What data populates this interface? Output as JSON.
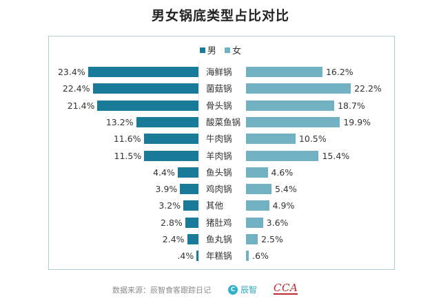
{
  "title": "男女锅底类型占比对比",
  "legend": {
    "male": {
      "label": "男",
      "color": "#1a7b98"
    },
    "female": {
      "label": "女",
      "color": "#72b1c1"
    }
  },
  "footer": {
    "source": "数据来源：辰智食客跟踪日记",
    "logo_chenzhi": {
      "glyph": "C",
      "text": "辰智"
    },
    "logo_cca": "CCA"
  },
  "rows": [
    {
      "category": "海鲜锅",
      "male": "23.4%",
      "female": "16.2%"
    },
    {
      "category": "菌菇锅",
      "male": "22.4%",
      "female": "22.2%"
    },
    {
      "category": "骨头锅",
      "male": "21.4%",
      "female": "18.7%"
    },
    {
      "category": "酸菜鱼锅",
      "male": "13.2%",
      "female": "19.9%"
    },
    {
      "category": "牛肉锅",
      "male": "11.6%",
      "female": "10.5%"
    },
    {
      "category": "羊肉锅",
      "male": "11.5%",
      "female": "15.4%"
    },
    {
      "category": "鱼头锅",
      "male": "4.4%",
      "female": "4.6%"
    },
    {
      "category": "鸡肉锅",
      "male": "3.9%",
      "female": "5.4%"
    },
    {
      "category": "其他",
      "male": "3.2%",
      "female": "4.9%"
    },
    {
      "category": "猪肚鸡",
      "male": "2.8%",
      "female": "3.6%"
    },
    {
      "category": "鱼丸锅",
      "male": "2.4%",
      "female": "2.5%"
    },
    {
      "category": "年糕锅",
      "male": ".4%",
      "female": ".6%"
    }
  ],
  "chart_data": {
    "type": "bar",
    "orientation": "horizontal-butterfly",
    "title": "男女锅底类型占比对比",
    "xlabel": "",
    "ylabel": "",
    "categories": [
      "海鲜锅",
      "菌菇锅",
      "骨头锅",
      "酸菜鱼锅",
      "牛肉锅",
      "羊肉锅",
      "鱼头锅",
      "鸡肉锅",
      "其他",
      "猪肚鸡",
      "鱼丸锅",
      "年糕锅"
    ],
    "series": [
      {
        "name": "男",
        "color": "#1a7b98",
        "values": [
          23.4,
          22.4,
          21.4,
          13.2,
          11.6,
          11.5,
          4.4,
          3.9,
          3.2,
          2.8,
          2.4,
          0.4
        ]
      },
      {
        "name": "女",
        "color": "#72b1c1",
        "values": [
          16.2,
          22.2,
          18.7,
          19.9,
          10.5,
          15.4,
          4.6,
          5.4,
          4.9,
          3.6,
          2.5,
          0.6
        ]
      }
    ],
    "unit": "%",
    "legend_position": "top",
    "grid": false,
    "data_labels": true
  }
}
